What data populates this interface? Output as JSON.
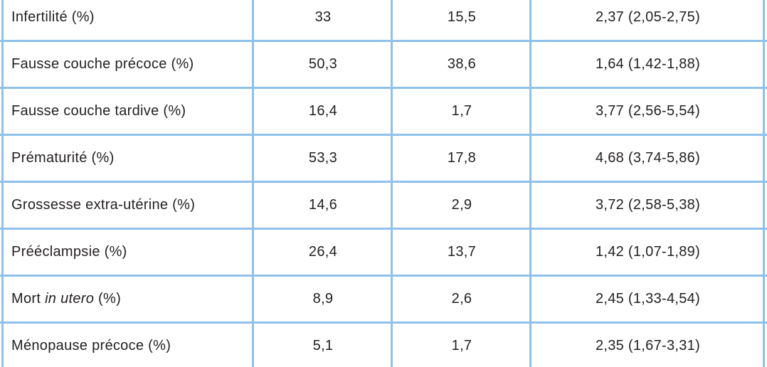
{
  "table": {
    "rows": [
      [
        "Infertilité (%)",
        "33",
        "15,5",
        "2,37 (2,05-2,75)"
      ],
      [
        "Fausse couche précoce (%)",
        "50,3",
        "38,6",
        "1,64 (1,42-1,88)"
      ],
      [
        "Fausse couche tardive (%)",
        "16,4",
        "1,7",
        "3,77 (2,56-5,54)"
      ],
      [
        "Prématurité (%)",
        "53,3",
        "17,8",
        "4,68 (3,74-5,86)"
      ],
      [
        "Grossesse extra-utérine (%)",
        "14,6",
        "2,9",
        "3,72 (2,58-5,38)"
      ],
      [
        "Prééclampsie (%)",
        "26,4",
        "13,7",
        "1,42 (1,07-1,89)"
      ],
      [
        [
          "Mort ",
          "in utero",
          " (%)"
        ],
        "8,9",
        "2,6",
        "2,45 (1,33-4,54)"
      ],
      [
        "Ménopause précoce (%)",
        "5,1",
        "1,7",
        "2,35 (1,67-3,31)"
      ]
    ]
  }
}
